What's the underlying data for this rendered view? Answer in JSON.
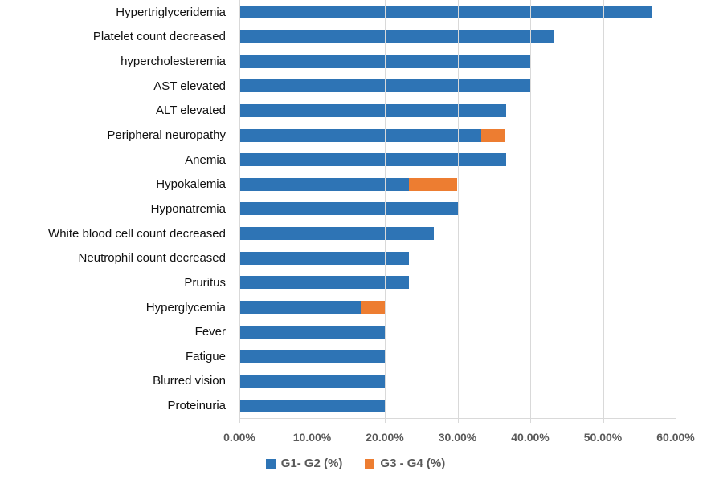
{
  "chart_data": {
    "type": "bar",
    "orientation": "horizontal",
    "stacked": true,
    "title": "",
    "categories": [
      "Hypertriglyceridemia",
      "Platelet count decreased",
      "hypercholesteremia",
      "AST elevated",
      "ALT elevated",
      "Peripheral neuropathy",
      "Anemia",
      "Hypokalemia",
      "Hyponatremia",
      "White blood cell count decreased",
      "Neutrophil count decreased",
      "Pruritus",
      "Hyperglycemia",
      "Fever",
      "Fatigue",
      "Blurred vision",
      "Proteinuria"
    ],
    "series": [
      {
        "name": "G1- G2 (%)",
        "color": "#2E74B5",
        "values": [
          56.7,
          43.3,
          40.0,
          40.0,
          36.7,
          33.3,
          36.7,
          23.3,
          30.0,
          26.7,
          23.3,
          23.3,
          16.7,
          20.0,
          20.0,
          20.0,
          20.0
        ]
      },
      {
        "name": "G3 - G4 (%)",
        "color": "#ED7D31",
        "values": [
          0,
          0,
          0,
          0,
          0,
          3.3,
          0,
          6.7,
          0,
          0,
          0,
          0,
          3.3,
          0,
          0,
          0,
          0
        ]
      }
    ],
    "x_axis": {
      "min": 0,
      "max": 60,
      "tick_step": 10,
      "ticks": [
        "0.00%",
        "10.00%",
        "20.00%",
        "30.00%",
        "40.00%",
        "50.00%",
        "60.00%"
      ]
    },
    "legend": {
      "position": "bottom"
    },
    "grid": true,
    "colors": {
      "gridline": "#d9d9d9",
      "axis_text": "#595959",
      "category_text": "#111111",
      "background": "#ffffff"
    }
  }
}
